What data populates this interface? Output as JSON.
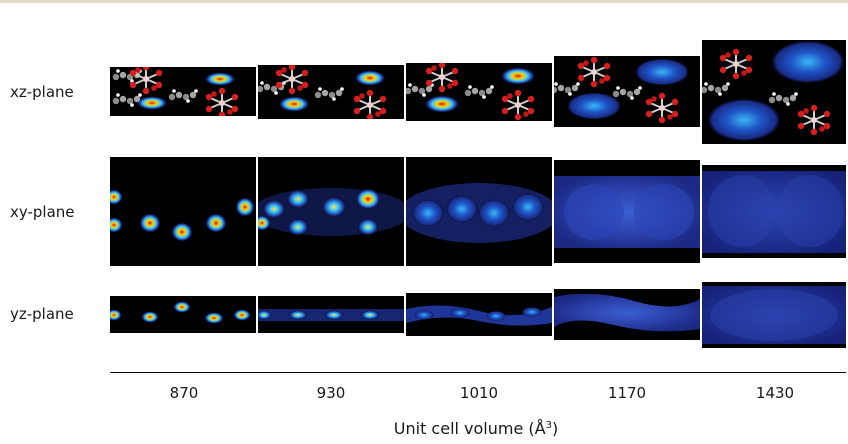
{
  "rows": {
    "xz": {
      "label": "xz-plane"
    },
    "xy": {
      "label": "xy-plane"
    },
    "yz": {
      "label": "yz-plane"
    }
  },
  "x_axis": {
    "ticks": [
      "870",
      "930",
      "1010",
      "1170",
      "1430"
    ],
    "title_main": "Unit cell volume (Å",
    "title_sup": "3",
    "title_close": ")"
  },
  "colors": {
    "panel_background": "#000000",
    "density_low": "#1c2f8f",
    "density_mid": "#3cc8ff",
    "density_high": "#d21a10",
    "oxygen_atom": "#d62020",
    "carbon_atom": "#9a9a9a",
    "hydrogen_atom": "#ffffff",
    "top_rule": "#e3dcc4"
  }
}
